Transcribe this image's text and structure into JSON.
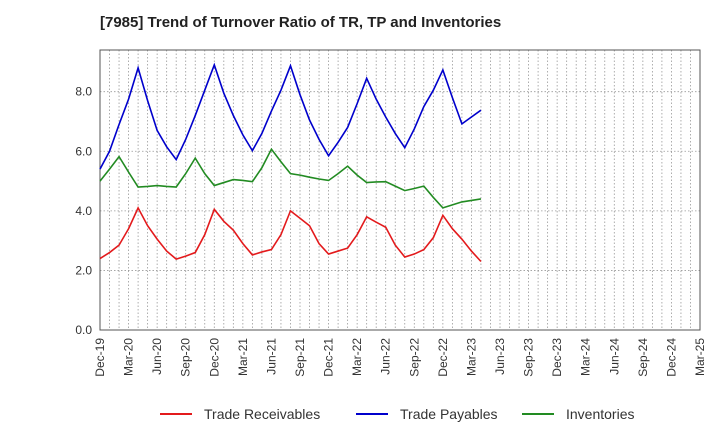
{
  "chart_data": {
    "type": "line",
    "title": "[7985]  Trend of Turnover Ratio of TR, TP and Inventories",
    "xlabel": "",
    "ylabel": "",
    "ylim": [
      0,
      9.4
    ],
    "yticks": [
      "0.0",
      "2.0",
      "4.0",
      "6.0",
      "8.0"
    ],
    "ytick_values": [
      0,
      2,
      4,
      6,
      8
    ],
    "xtick_labels": [
      "Dec-19",
      "Mar-20",
      "Jun-20",
      "Sep-20",
      "Dec-20",
      "Mar-21",
      "Jun-21",
      "Sep-21",
      "Dec-21",
      "Mar-22",
      "Jun-22",
      "Sep-22",
      "Dec-22",
      "Mar-23",
      "Jun-23",
      "Sep-23",
      "Dec-23",
      "Mar-24",
      "Jun-24",
      "Sep-24",
      "Dec-24",
      "Mar-25"
    ],
    "grid": true,
    "legend_position": "bottom",
    "series": [
      {
        "name": "Trade Receivables",
        "color": "#e31a1c",
        "values": [
          2.4,
          2.6,
          2.85,
          3.4,
          4.1,
          3.5,
          3.05,
          2.65,
          2.38,
          2.48,
          2.6,
          3.2,
          4.05,
          3.65,
          3.35,
          2.9,
          2.52,
          2.62,
          2.7,
          3.2,
          4.0,
          3.75,
          3.5,
          2.9,
          2.55,
          2.65,
          2.75,
          3.2,
          3.8,
          3.62,
          3.45,
          2.85,
          2.45,
          2.55,
          2.7,
          3.1,
          3.85,
          3.4,
          3.05,
          2.65,
          2.3
        ]
      },
      {
        "name": "Trade Payables",
        "color": "#0000cc",
        "values": [
          5.4,
          6.0,
          6.9,
          7.75,
          8.8,
          7.7,
          6.7,
          6.15,
          5.72,
          6.4,
          7.2,
          8.05,
          8.9,
          7.95,
          7.2,
          6.55,
          6.02,
          6.6,
          7.35,
          8.05,
          8.87,
          7.9,
          7.05,
          6.4,
          5.85,
          6.3,
          6.8,
          7.6,
          8.45,
          7.75,
          7.15,
          6.6,
          6.12,
          6.75,
          7.5,
          8.05,
          8.73,
          7.8,
          6.92,
          7.15,
          7.38
        ]
      },
      {
        "name": "Inventories",
        "color": "#228b22",
        "values": [
          5.0,
          5.4,
          5.82,
          5.3,
          4.8,
          4.82,
          4.85,
          4.82,
          4.8,
          5.25,
          5.77,
          5.25,
          4.85,
          4.95,
          5.05,
          5.02,
          4.98,
          5.45,
          6.07,
          5.65,
          5.25,
          5.2,
          5.13,
          5.07,
          5.02,
          5.25,
          5.5,
          5.2,
          4.95,
          4.97,
          4.98,
          4.83,
          4.68,
          4.75,
          4.83,
          4.45,
          4.1,
          4.2,
          4.3,
          4.35,
          4.4
        ]
      }
    ]
  }
}
